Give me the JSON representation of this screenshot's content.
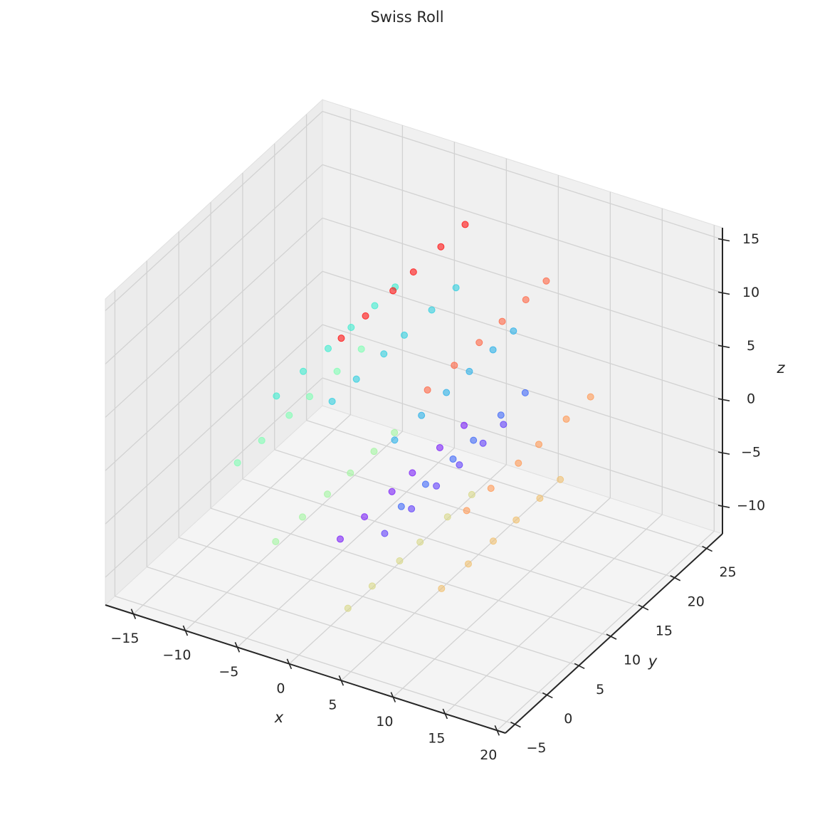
{
  "chart_data": {
    "type": "scatter3d",
    "title": "Swiss Roll",
    "xlabel": "x",
    "ylabel": "y",
    "zlabel": "z",
    "xlim": [
      -17.7,
      20.8
    ],
    "ylim": [
      -6.5,
      27.5
    ],
    "zlim": [
      -12.6,
      16.1
    ],
    "xticks": [
      {
        "value": -15,
        "label": "−15"
      },
      {
        "value": -10,
        "label": "−10"
      },
      {
        "value": -5,
        "label": "−5"
      },
      0,
      5,
      10,
      15,
      20
    ],
    "yticks": [
      {
        "value": -5,
        "label": "−5"
      },
      0,
      5,
      10,
      15,
      20,
      25
    ],
    "zticks": [
      {
        "value": -10,
        "label": "−10"
      },
      {
        "value": -5,
        "label": "−5"
      },
      0,
      5,
      10,
      15
    ],
    "grid": true,
    "series": [
      {
        "color": "#7a1ff7",
        "x": [
          0.42,
          0.42,
          0.42,
          0.42,
          0.42,
          0.42
        ],
        "y": [
          0.8,
          4.6,
          8.9,
          12.1,
          16.4,
          20.2
        ],
        "z": [
          -4.78,
          -4.78,
          -4.78,
          -4.78,
          -4.78,
          -4.78
        ]
      },
      {
        "color": "#6040fa",
        "x": [
          3.9,
          3.9,
          3.9,
          3.9,
          3.9,
          3.9
        ],
        "y": [
          2.1,
          6.3,
          10.2,
          13.8,
          17.5,
          20.7
        ],
        "z": [
          -3.88,
          -3.88,
          -3.88,
          -3.88,
          -3.88,
          -3.88
        ]
      },
      {
        "color": "#3f68f8",
        "x": [
          6.3,
          6.3,
          6.3,
          6.3,
          6.3,
          6.3
        ],
        "y": [
          0.8,
          4.6,
          8.9,
          12.1,
          16.4,
          20.2
        ],
        "z": [
          0.11,
          0.11,
          0.11,
          0.11,
          0.11,
          0.11
        ]
      },
      {
        "color": "#2ab0e8",
        "x": [
          4.86,
          4.86,
          4.86,
          4.86,
          4.86,
          4.86
        ],
        "y": [
          2.1,
          6.3,
          10.2,
          13.8,
          17.5,
          20.7
        ],
        "z": [
          5.18,
          5.18,
          5.18,
          5.18,
          5.18,
          5.18
        ]
      },
      {
        "color": "#30cfe0",
        "x": [
          -0.36,
          -0.36,
          -0.36,
          -0.36,
          -0.36,
          -0.36
        ],
        "y": [
          0.8,
          4.6,
          8.9,
          12.1,
          16.4,
          20.2
        ],
        "z": [
          7.89,
          7.89,
          7.89,
          7.89,
          7.89,
          7.89
        ]
      },
      {
        "color": "#40ecd0",
        "x": [
          -6.52,
          -6.52,
          -6.52,
          -6.52,
          -6.52,
          -6.52
        ],
        "y": [
          2.1,
          6.3,
          10.2,
          13.8,
          17.5,
          20.7
        ],
        "z": [
          5.76,
          5.76,
          5.76,
          5.76,
          5.76,
          5.76
        ]
      },
      {
        "color": "#80ffb4",
        "x": [
          -9.47,
          -9.47,
          -9.47,
          -9.47,
          -9.47,
          -9.47
        ],
        "y": [
          0.8,
          4.6,
          8.9,
          12.1,
          16.4,
          20.2
        ],
        "z": [
          -0.71,
          -0.71,
          -0.71,
          -0.71,
          -0.71,
          -0.71
        ]
      },
      {
        "color": "#a2f5a0",
        "x": [
          -6.59,
          -6.59,
          -6.59,
          -6.59,
          -6.59,
          -6.59
        ],
        "y": [
          2.1,
          6.3,
          10.2,
          13.8,
          17.5,
          20.7
        ],
        "z": [
          -7.92,
          -7.92,
          -7.92,
          -7.92,
          -7.92,
          -7.92
        ]
      },
      {
        "color": "#d8d888",
        "x": [
          1.16,
          1.16,
          1.16,
          1.16,
          1.16,
          1.16
        ],
        "y": [
          0.8,
          4.6,
          8.9,
          12.1,
          16.4,
          20.2
        ],
        "z": [
          -11.04,
          -11.04,
          -11.04,
          -11.04,
          -11.04,
          -11.04
        ]
      },
      {
        "color": "#f0c070",
        "x": [
          9.37,
          9.37,
          9.37,
          9.37,
          9.37,
          9.37
        ],
        "y": [
          2.1,
          6.3,
          10.2,
          13.8,
          17.5,
          20.7
        ],
        "z": [
          -7.34,
          -7.34,
          -7.34,
          -7.34,
          -7.34,
          -7.34
        ]
      },
      {
        "color": "#ff9955",
        "x": [
          12.59,
          12.59,
          12.59,
          12.59,
          12.59,
          12.59
        ],
        "y": [
          0.8,
          4.6,
          8.9,
          12.1,
          16.4,
          20.2
        ],
        "z": [
          1.69,
          1.69,
          1.69,
          1.69,
          1.69,
          1.69
        ]
      },
      {
        "color": "#ff6644",
        "x": [
          8.02,
          8.02,
          8.02,
          8.02,
          8.02,
          8.02
        ],
        "y": [
          2.1,
          6.3,
          10.2,
          13.8,
          17.5,
          20.7
        ],
        "z": [
          10.86,
          10.86,
          10.86,
          10.86,
          10.86,
          10.86
        ]
      },
      {
        "color": "#ff1010",
        "x": [
          0.52,
          0.52,
          0.52,
          0.52,
          0.52,
          0.52
        ],
        "y": [
          0.8,
          4.6,
          8.9,
          12.1,
          16.4,
          20.2
        ],
        "z": [
          14.09,
          14.09,
          14.09,
          14.09,
          14.09,
          14.09
        ]
      }
    ]
  }
}
